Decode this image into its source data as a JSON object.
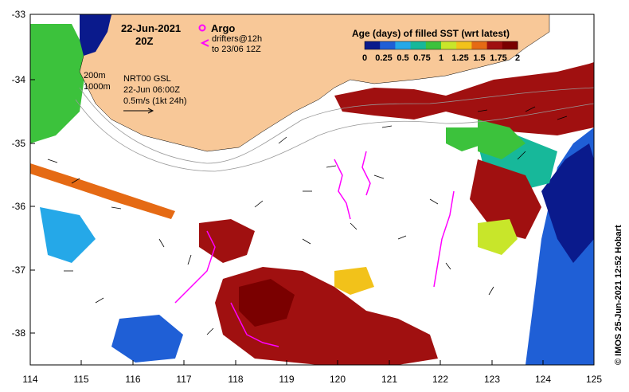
{
  "title": {
    "date": "22-Jun-2021",
    "time": "20Z"
  },
  "argo": {
    "label": "Argo",
    "drifters_line1": "drifters@12h",
    "drifters_line2": "to 23/06 12Z",
    "color": "#ff00ff"
  },
  "contours": {
    "c200": "200m",
    "c1000": "1000m"
  },
  "currents": {
    "source": "NRT00 GSL",
    "datetime": "22-Jun 06:00Z",
    "scale": "0.5m/s (1kt 24h)"
  },
  "legend": {
    "title": "Age (days) of filled SST (wrt latest)",
    "ticks": [
      "0",
      "0.25",
      "0.5",
      "0.75",
      "1",
      "1.25",
      "1.5",
      "1.75",
      "2"
    ],
    "colors": [
      "#0a1a8c",
      "#1f5fd6",
      "#25a8e8",
      "#17b89a",
      "#3cc23c",
      "#c8e62a",
      "#f2c21a",
      "#e56a14",
      "#a01010",
      "#7a0000"
    ]
  },
  "axes": {
    "x_ticks": [
      "114",
      "115",
      "116",
      "117",
      "118",
      "119",
      "120",
      "121",
      "122",
      "123",
      "124",
      "125"
    ],
    "y_ticks": [
      "-33",
      "-34",
      "-35",
      "-36",
      "-37",
      "-38"
    ]
  },
  "credit": "© IMOS 25-Jun-2021 12:52 Hobart",
  "colors": {
    "land": "#f8c898",
    "ocean_deep": "#0a1a8c",
    "missing": "#ffffff"
  }
}
